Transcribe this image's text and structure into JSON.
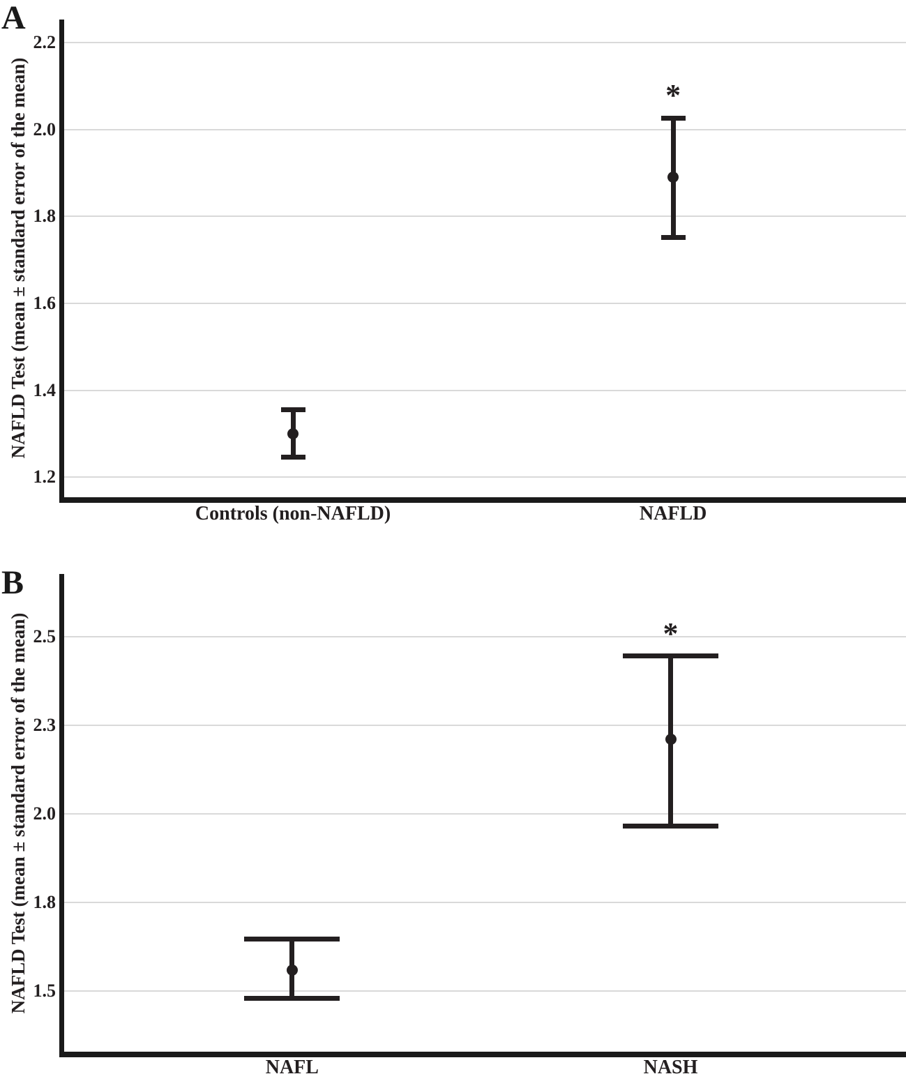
{
  "figure": {
    "panels": [
      {
        "letter": "A",
        "x_categories": [
          "Controls (non-NAFLD)",
          "NAFLD"
        ]
      },
      {
        "letter": "B",
        "x_categories": [
          "NAFL",
          "NASH"
        ]
      }
    ],
    "significance_marker": "*"
  },
  "colors": {
    "data": "#231f20",
    "gridline": "#d9d9d9",
    "axis": "#1a1a1a",
    "background": "#ffffff"
  },
  "chart_data": [
    {
      "type": "errorbar",
      "panel_letter": "A",
      "title": "",
      "xlabel": "",
      "ylabel": "NAFLD Test (mean ± standard error of the mean)",
      "ylim": [
        1.154,
        2.253
      ],
      "grid": true,
      "legend": "none",
      "yticks": [
        {
          "value": 2.2,
          "label": "2.2"
        },
        {
          "value": 2.0,
          "label": "2.0"
        },
        {
          "value": 1.8,
          "label": "1.8"
        },
        {
          "value": 1.6,
          "label": "1.6"
        },
        {
          "value": 1.4,
          "label": "1.4"
        },
        {
          "value": 1.2,
          "label": "1.2"
        }
      ],
      "points": [
        {
          "category": "Controls (non-NAFLD)",
          "x_frac": 0.276,
          "mean": 1.3,
          "upper": 1.355,
          "lower": 1.246,
          "marker": ""
        },
        {
          "category": "NAFLD",
          "x_frac": 0.725,
          "mean": 1.89,
          "upper": 2.026,
          "lower": 1.752,
          "marker": "*"
        }
      ]
    },
    {
      "type": "errorbar",
      "panel_letter": "B",
      "title": "",
      "xlabel": "",
      "ylabel": "NAFLD Test (mean ± standard error of the mean)",
      "ylim": [
        1.33,
        2.676
      ],
      "grid": true,
      "legend": "none",
      "yticks": [
        {
          "value": 2.5,
          "label": "2.5"
        },
        {
          "value": 2.25,
          "label": "2.3"
        },
        {
          "value": 2.0,
          "label": "2.0"
        },
        {
          "value": 1.75,
          "label": "1.8"
        },
        {
          "value": 1.5,
          "label": "1.5"
        }
      ],
      "points": [
        {
          "category": "NAFL",
          "x_frac": 0.275,
          "mean": 1.56,
          "upper": 1.648,
          "lower": 1.48,
          "marker": ""
        },
        {
          "category": "NASH",
          "x_frac": 0.722,
          "mean": 2.21,
          "upper": 2.445,
          "lower": 1.965,
          "marker": "*"
        }
      ]
    }
  ]
}
